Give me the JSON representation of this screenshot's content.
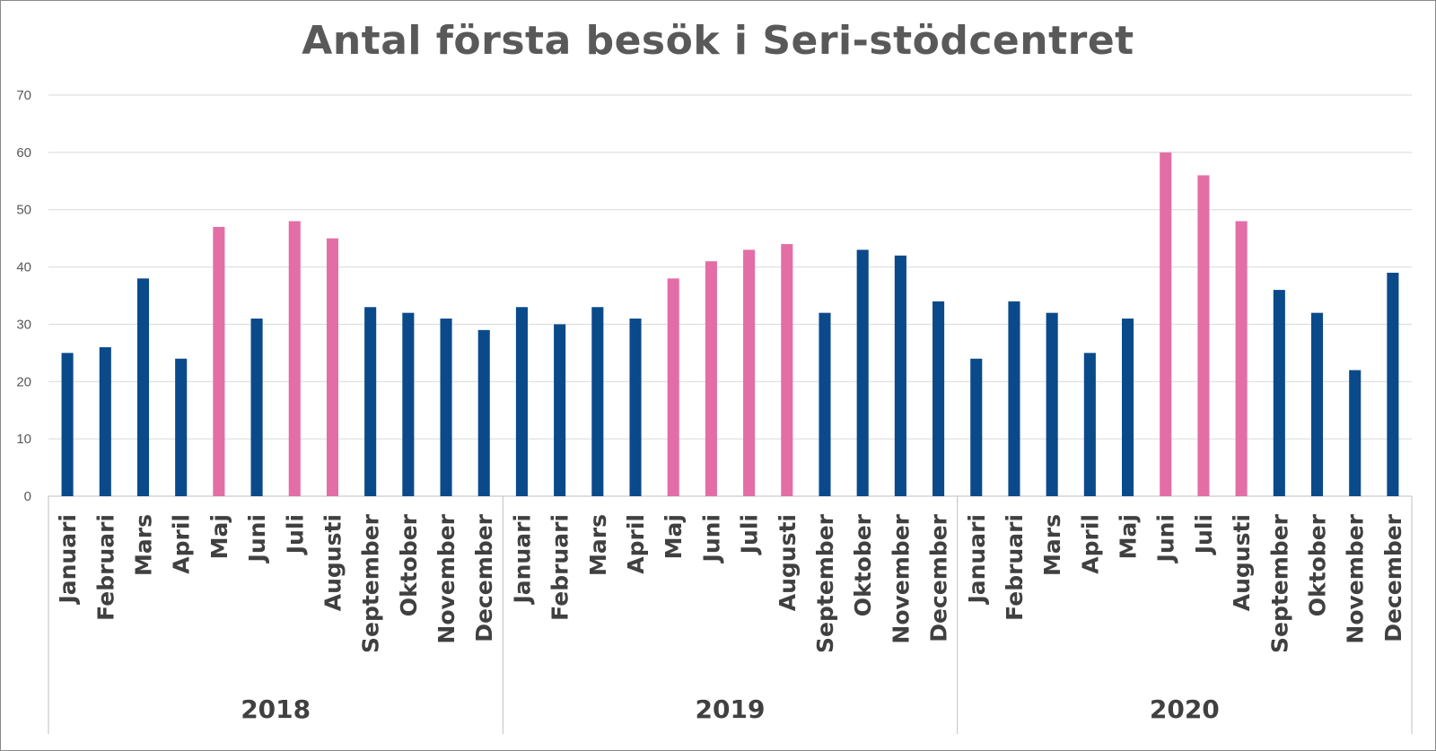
{
  "chart_data": {
    "type": "bar",
    "title": "Antal första besök i Seri-stödcentret",
    "xlabel": "",
    "ylabel": "",
    "ylim": [
      0,
      70
    ],
    "yticks": [
      0,
      10,
      20,
      30,
      40,
      50,
      60,
      70
    ],
    "grid": true,
    "legend": "none",
    "colors": {
      "default": "#0a4a8a",
      "highlight": "#e36ea6",
      "grid": "#d9d9d9",
      "axis": "#bfbfbf"
    },
    "groups": [
      {
        "year": "2018",
        "categories": [
          "Januari",
          "Februari",
          "Mars",
          "April",
          "Maj",
          "Juni",
          "Juli",
          "Augusti",
          "September",
          "Oktober",
          "November",
          "December"
        ],
        "values": [
          25,
          26,
          38,
          24,
          47,
          31,
          48,
          45,
          33,
          32,
          31,
          29
        ],
        "highlight": [
          false,
          false,
          false,
          false,
          true,
          false,
          true,
          true,
          false,
          false,
          false,
          false
        ]
      },
      {
        "year": "2019",
        "categories": [
          "Januari",
          "Februari",
          "Mars",
          "April",
          "Maj",
          "Juni",
          "Juli",
          "Augusti",
          "September",
          "Oktober",
          "November",
          "December"
        ],
        "values": [
          33,
          30,
          33,
          31,
          38,
          41,
          43,
          44,
          32,
          43,
          42,
          34
        ],
        "highlight": [
          false,
          false,
          false,
          false,
          true,
          true,
          true,
          true,
          false,
          false,
          false,
          false
        ]
      },
      {
        "year": "2020",
        "categories": [
          "Januari",
          "Februari",
          "Mars",
          "April",
          "Maj",
          "Juni",
          "Juli",
          "Augusti",
          "September",
          "Oktober",
          "November",
          "December"
        ],
        "values": [
          24,
          34,
          32,
          25,
          31,
          60,
          56,
          48,
          36,
          32,
          22,
          39
        ],
        "highlight": [
          false,
          false,
          false,
          false,
          false,
          true,
          true,
          true,
          false,
          false,
          false,
          false
        ]
      }
    ]
  }
}
